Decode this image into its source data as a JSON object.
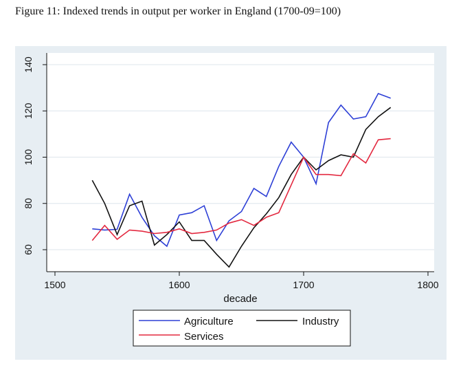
{
  "caption": "Figure 11: Indexed trends in output per worker in England (1700-09=100)",
  "colors": {
    "background": "#e7eef3",
    "plot_bg": "#ffffff",
    "grid": "#e3eaef",
    "agriculture": "#2d3fd6",
    "industry": "#111111",
    "services": "#e3283f"
  },
  "chart_data": {
    "type": "line",
    "title": "",
    "xlabel": "decade",
    "ylabel": "",
    "xlim": [
      1500,
      1800
    ],
    "ylim": [
      50,
      145
    ],
    "xticks": [
      1500,
      1600,
      1700,
      1800
    ],
    "yticks": [
      60,
      80,
      100,
      120,
      140
    ],
    "x": [
      1530,
      1540,
      1550,
      1560,
      1570,
      1580,
      1590,
      1600,
      1610,
      1620,
      1630,
      1640,
      1650,
      1660,
      1670,
      1680,
      1690,
      1700,
      1710,
      1720,
      1730,
      1740,
      1750,
      1760,
      1770
    ],
    "series": [
      {
        "name": "Agriculture",
        "color": "#2d3fd6",
        "values": [
          69,
          68.5,
          68.8,
          84,
          74,
          66,
          61.5,
          75,
          76,
          79,
          64,
          72.5,
          76.5,
          86.5,
          83,
          96,
          106.5,
          100,
          88.5,
          115,
          122.5,
          116.5,
          117.5,
          127.5,
          125.5
        ]
      },
      {
        "name": "Industry",
        "color": "#111111",
        "values": [
          90,
          80,
          66.5,
          79,
          81,
          62,
          66.5,
          72,
          64,
          64,
          58,
          52.5,
          61.5,
          69.5,
          75.5,
          82.5,
          92.5,
          100,
          94.5,
          98.5,
          101,
          100,
          112,
          117.5,
          121.5
        ]
      },
      {
        "name": "Services",
        "color": "#e3283f",
        "values": [
          64,
          70.5,
          64.5,
          68.5,
          68,
          67,
          67.5,
          69,
          67,
          67.5,
          68.5,
          71.5,
          73,
          70.5,
          74,
          76,
          88,
          100,
          92.5,
          92.5,
          92,
          101.5,
          97.5,
          107.5,
          108
        ]
      }
    ],
    "legend": {
      "position": "bottom",
      "entries": [
        "Agriculture",
        "Industry",
        "Services"
      ]
    }
  }
}
